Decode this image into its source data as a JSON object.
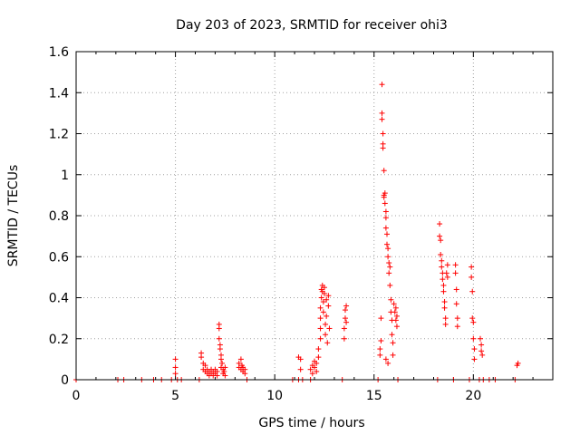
{
  "chart_data": {
    "type": "scatter",
    "title": "Day 203 of 2023, SRMTID for receiver ohi3",
    "xlabel": "GPS time / hours",
    "ylabel": "SRMTID / TECUs",
    "xlim": [
      0,
      24
    ],
    "ylim": [
      0,
      1.6
    ],
    "x_ticks": [
      0,
      5,
      10,
      15,
      20
    ],
    "x_tick_labels": [
      "0",
      "5",
      "10",
      "15",
      "20"
    ],
    "y_ticks": [
      0,
      0.2,
      0.4,
      0.6,
      0.8,
      1.0,
      1.2,
      1.4,
      1.6
    ],
    "y_tick_labels": [
      "0",
      "0.2",
      "0.4",
      "0.6",
      "0.8",
      "1",
      "1.2",
      "1.4",
      "1.6"
    ],
    "grid": true,
    "marker": "plus",
    "series": [
      {
        "name": "SRMTID",
        "color": "#ff0000",
        "points": [
          [
            0.0,
            0.0
          ],
          [
            2.1,
            0.0
          ],
          [
            2.4,
            0.0
          ],
          [
            3.3,
            0.0
          ],
          [
            3.9,
            0.0
          ],
          [
            4.3,
            0.0
          ],
          [
            4.8,
            0.0
          ],
          [
            5.0,
            0.1
          ],
          [
            5.0,
            0.06
          ],
          [
            5.0,
            0.03
          ],
          [
            5.1,
            0.0
          ],
          [
            5.3,
            0.0
          ],
          [
            6.2,
            0.0
          ],
          [
            6.3,
            0.13
          ],
          [
            6.3,
            0.11
          ],
          [
            6.4,
            0.08
          ],
          [
            6.4,
            0.05
          ],
          [
            6.5,
            0.07
          ],
          [
            6.5,
            0.04
          ],
          [
            6.6,
            0.03
          ],
          [
            6.6,
            0.05
          ],
          [
            6.7,
            0.02
          ],
          [
            6.7,
            0.04
          ],
          [
            6.8,
            0.03
          ],
          [
            6.8,
            0.05
          ],
          [
            6.9,
            0.02
          ],
          [
            6.9,
            0.04
          ],
          [
            7.0,
            0.03
          ],
          [
            7.0,
            0.05
          ],
          [
            7.1,
            0.04
          ],
          [
            7.1,
            0.02
          ],
          [
            7.2,
            0.27
          ],
          [
            7.2,
            0.25
          ],
          [
            7.2,
            0.2
          ],
          [
            7.25,
            0.17
          ],
          [
            7.25,
            0.15
          ],
          [
            7.3,
            0.12
          ],
          [
            7.3,
            0.1
          ],
          [
            7.3,
            0.06
          ],
          [
            7.35,
            0.08
          ],
          [
            7.4,
            0.05
          ],
          [
            7.4,
            0.03
          ],
          [
            7.45,
            0.04
          ],
          [
            7.5,
            0.06
          ],
          [
            7.5,
            0.02
          ],
          [
            8.2,
            0.06
          ],
          [
            8.2,
            0.08
          ],
          [
            8.3,
            0.1
          ],
          [
            8.3,
            0.05
          ],
          [
            8.35,
            0.07
          ],
          [
            8.4,
            0.04
          ],
          [
            8.4,
            0.06
          ],
          [
            8.5,
            0.03
          ],
          [
            8.5,
            0.05
          ],
          [
            8.6,
            0.0
          ],
          [
            10.9,
            0.0
          ],
          [
            11.2,
            0.0
          ],
          [
            11.2,
            0.11
          ],
          [
            11.3,
            0.1
          ],
          [
            11.3,
            0.05
          ],
          [
            11.4,
            0.0
          ],
          [
            11.8,
            0.0
          ],
          [
            11.8,
            0.05
          ],
          [
            11.9,
            0.07
          ],
          [
            11.9,
            0.03
          ],
          [
            12.0,
            0.09
          ],
          [
            12.0,
            0.06
          ],
          [
            12.1,
            0.04
          ],
          [
            12.1,
            0.08
          ],
          [
            12.2,
            0.11
          ],
          [
            12.2,
            0.15
          ],
          [
            12.3,
            0.2
          ],
          [
            12.3,
            0.25
          ],
          [
            12.3,
            0.3
          ],
          [
            12.3,
            0.35
          ],
          [
            12.35,
            0.4
          ],
          [
            12.35,
            0.44
          ],
          [
            12.4,
            0.46
          ],
          [
            12.4,
            0.43
          ],
          [
            12.45,
            0.38
          ],
          [
            12.45,
            0.33
          ],
          [
            12.5,
            0.45
          ],
          [
            12.5,
            0.42
          ],
          [
            12.55,
            0.27
          ],
          [
            12.55,
            0.22
          ],
          [
            12.6,
            0.31
          ],
          [
            12.6,
            0.39
          ],
          [
            12.65,
            0.18
          ],
          [
            12.7,
            0.41
          ],
          [
            12.7,
            0.36
          ],
          [
            12.75,
            0.25
          ],
          [
            13.4,
            0.0
          ],
          [
            13.5,
            0.2
          ],
          [
            13.5,
            0.25
          ],
          [
            13.55,
            0.3
          ],
          [
            13.55,
            0.34
          ],
          [
            13.6,
            0.36
          ],
          [
            13.6,
            0.28
          ],
          [
            15.2,
            0.0
          ],
          [
            15.3,
            0.15
          ],
          [
            15.3,
            0.12
          ],
          [
            15.35,
            0.19
          ],
          [
            15.35,
            0.3
          ],
          [
            15.4,
            1.44
          ],
          [
            15.4,
            1.3
          ],
          [
            15.4,
            1.27
          ],
          [
            15.45,
            1.2
          ],
          [
            15.45,
            1.15
          ],
          [
            15.45,
            1.13
          ],
          [
            15.5,
            1.02
          ],
          [
            15.5,
            0.9
          ],
          [
            15.5,
            0.89
          ],
          [
            15.55,
            0.91
          ],
          [
            15.55,
            0.86
          ],
          [
            15.6,
            0.82
          ],
          [
            15.6,
            0.79
          ],
          [
            15.6,
            0.74
          ],
          [
            15.65,
            0.71
          ],
          [
            15.65,
            0.66
          ],
          [
            15.7,
            0.64
          ],
          [
            15.7,
            0.6
          ],
          [
            15.75,
            0.57
          ],
          [
            15.75,
            0.52
          ],
          [
            15.8,
            0.55
          ],
          [
            15.8,
            0.46
          ],
          [
            15.85,
            0.39
          ],
          [
            15.85,
            0.33
          ],
          [
            15.9,
            0.29
          ],
          [
            15.9,
            0.22
          ],
          [
            15.95,
            0.18
          ],
          [
            15.95,
            0.12
          ],
          [
            15.6,
            0.1
          ],
          [
            15.7,
            0.08
          ],
          [
            16.0,
            0.37
          ],
          [
            16.05,
            0.33
          ],
          [
            16.1,
            0.35
          ],
          [
            16.1,
            0.29
          ],
          [
            16.15,
            0.31
          ],
          [
            16.15,
            0.26
          ],
          [
            16.2,
            0.0
          ],
          [
            18.2,
            0.0
          ],
          [
            18.3,
            0.76
          ],
          [
            18.3,
            0.7
          ],
          [
            18.35,
            0.68
          ],
          [
            18.35,
            0.61
          ],
          [
            18.4,
            0.58
          ],
          [
            18.4,
            0.55
          ],
          [
            18.45,
            0.52
          ],
          [
            18.45,
            0.49
          ],
          [
            18.5,
            0.46
          ],
          [
            18.5,
            0.43
          ],
          [
            18.55,
            0.38
          ],
          [
            18.55,
            0.35
          ],
          [
            18.6,
            0.3
          ],
          [
            18.6,
            0.27
          ],
          [
            18.65,
            0.52
          ],
          [
            18.7,
            0.56
          ],
          [
            18.7,
            0.5
          ],
          [
            19.0,
            0.0
          ],
          [
            19.1,
            0.56
          ],
          [
            19.1,
            0.52
          ],
          [
            19.15,
            0.44
          ],
          [
            19.15,
            0.37
          ],
          [
            19.2,
            0.3
          ],
          [
            19.2,
            0.26
          ],
          [
            19.8,
            0.0
          ],
          [
            19.9,
            0.55
          ],
          [
            19.9,
            0.5
          ],
          [
            19.95,
            0.43
          ],
          [
            19.95,
            0.3
          ],
          [
            20.0,
            0.28
          ],
          [
            20.0,
            0.2
          ],
          [
            20.05,
            0.15
          ],
          [
            20.05,
            0.1
          ],
          [
            20.3,
            0.0
          ],
          [
            20.35,
            0.2
          ],
          [
            20.4,
            0.17
          ],
          [
            20.4,
            0.14
          ],
          [
            20.45,
            0.12
          ],
          [
            20.5,
            0.0
          ],
          [
            20.8,
            0.0
          ],
          [
            21.1,
            0.0
          ],
          [
            22.1,
            0.0
          ],
          [
            22.2,
            0.07
          ],
          [
            22.25,
            0.08
          ]
        ]
      }
    ]
  }
}
